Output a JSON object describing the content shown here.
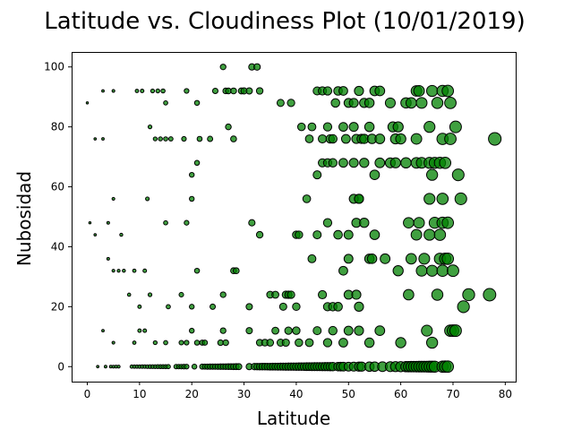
{
  "chart_data": {
    "type": "scatter",
    "title": "Latitude vs. Cloudiness Plot (10/01/2019)",
    "xlabel": "Latitude",
    "ylabel": "Nubosidad",
    "xlim": [
      -3,
      82
    ],
    "ylim": [
      -5,
      105
    ],
    "x_ticks": [
      0,
      10,
      20,
      30,
      40,
      50,
      60,
      70,
      80
    ],
    "y_ticks": [
      0,
      20,
      40,
      60,
      80,
      100
    ],
    "grid": false,
    "marker_size_encodes": "latitude",
    "colors": {
      "marker_fill": "#008000",
      "marker_edge": "#000000"
    },
    "points": [
      [
        26,
        100
      ],
      [
        31.5,
        100
      ],
      [
        32.5,
        100
      ],
      [
        0,
        88
      ],
      [
        3,
        92
      ],
      [
        5,
        92
      ],
      [
        9.5,
        92
      ],
      [
        10.5,
        92
      ],
      [
        12.5,
        92
      ],
      [
        13.5,
        92
      ],
      [
        14.5,
        92
      ],
      [
        15,
        88
      ],
      [
        19,
        92
      ],
      [
        21,
        88
      ],
      [
        24.5,
        92
      ],
      [
        26.5,
        92
      ],
      [
        27,
        92
      ],
      [
        28,
        92
      ],
      [
        29.5,
        92
      ],
      [
        30,
        92
      ],
      [
        31,
        92
      ],
      [
        33,
        92
      ],
      [
        37,
        88
      ],
      [
        39,
        88
      ],
      [
        44,
        92
      ],
      [
        45,
        92
      ],
      [
        46,
        92
      ],
      [
        47.5,
        88
      ],
      [
        48,
        92
      ],
      [
        49,
        92
      ],
      [
        50,
        88
      ],
      [
        51,
        88
      ],
      [
        52,
        92
      ],
      [
        53,
        88
      ],
      [
        54,
        88
      ],
      [
        55,
        92
      ],
      [
        56,
        92
      ],
      [
        58,
        88
      ],
      [
        61,
        88
      ],
      [
        62,
        88
      ],
      [
        63,
        92
      ],
      [
        63.5,
        92
      ],
      [
        64,
        88
      ],
      [
        66,
        92
      ],
      [
        67,
        88
      ],
      [
        68,
        92
      ],
      [
        69,
        92
      ],
      [
        69.5,
        88
      ],
      [
        1.5,
        76
      ],
      [
        3,
        76
      ],
      [
        12,
        80
      ],
      [
        13,
        76
      ],
      [
        14,
        76
      ],
      [
        15,
        76
      ],
      [
        16,
        76
      ],
      [
        18.5,
        76
      ],
      [
        21.5,
        76
      ],
      [
        23.5,
        76
      ],
      [
        27,
        80
      ],
      [
        28,
        76
      ],
      [
        41,
        80
      ],
      [
        42.5,
        76
      ],
      [
        43,
        80
      ],
      [
        45,
        76
      ],
      [
        46,
        80
      ],
      [
        46.5,
        76
      ],
      [
        47,
        76
      ],
      [
        49,
        80
      ],
      [
        49.5,
        76
      ],
      [
        51,
        80
      ],
      [
        51.5,
        76
      ],
      [
        52.5,
        76
      ],
      [
        53,
        76
      ],
      [
        54,
        80
      ],
      [
        54.5,
        76
      ],
      [
        56,
        76
      ],
      [
        58.5,
        80
      ],
      [
        59,
        76
      ],
      [
        59.5,
        80
      ],
      [
        60,
        76
      ],
      [
        63,
        76
      ],
      [
        65.5,
        80
      ],
      [
        68,
        76
      ],
      [
        69.5,
        76
      ],
      [
        70.5,
        80
      ],
      [
        78,
        76
      ],
      [
        20,
        64
      ],
      [
        21,
        68
      ],
      [
        44,
        64
      ],
      [
        45,
        68
      ],
      [
        46,
        68
      ],
      [
        47,
        68
      ],
      [
        49,
        68
      ],
      [
        51,
        68
      ],
      [
        52,
        56
      ],
      [
        53,
        68
      ],
      [
        55,
        64
      ],
      [
        56,
        68
      ],
      [
        58,
        68
      ],
      [
        59,
        68
      ],
      [
        61,
        68
      ],
      [
        63,
        68
      ],
      [
        64,
        68
      ],
      [
        65.5,
        68
      ],
      [
        66,
        64
      ],
      [
        66.5,
        68
      ],
      [
        67.5,
        68
      ],
      [
        68.5,
        68
      ],
      [
        71,
        64
      ],
      [
        5,
        56
      ],
      [
        11.5,
        56
      ],
      [
        20,
        56
      ],
      [
        42,
        56
      ],
      [
        51,
        56
      ],
      [
        52,
        56
      ],
      [
        65.5,
        56
      ],
      [
        68,
        56
      ],
      [
        71.5,
        56
      ],
      [
        0.5,
        48
      ],
      [
        1.5,
        44
      ],
      [
        4,
        48
      ],
      [
        6.5,
        44
      ],
      [
        15,
        48
      ],
      [
        19,
        48
      ],
      [
        31.5,
        48
      ],
      [
        33,
        44
      ],
      [
        40,
        44
      ],
      [
        40.5,
        44
      ],
      [
        44,
        44
      ],
      [
        46,
        48
      ],
      [
        48,
        44
      ],
      [
        50,
        44
      ],
      [
        51.5,
        48
      ],
      [
        53,
        48
      ],
      [
        55,
        44
      ],
      [
        61.5,
        48
      ],
      [
        63,
        44
      ],
      [
        63.5,
        48
      ],
      [
        65.5,
        44
      ],
      [
        66.5,
        48
      ],
      [
        67.5,
        44
      ],
      [
        68,
        48
      ],
      [
        69,
        48
      ],
      [
        4,
        36
      ],
      [
        5,
        32
      ],
      [
        6,
        32
      ],
      [
        7,
        32
      ],
      [
        9,
        32
      ],
      [
        11,
        32
      ],
      [
        21,
        32
      ],
      [
        28,
        32
      ],
      [
        28.5,
        32
      ],
      [
        43,
        36
      ],
      [
        49,
        32
      ],
      [
        50,
        36
      ],
      [
        54,
        36
      ],
      [
        54.5,
        36
      ],
      [
        57,
        36
      ],
      [
        59.5,
        32
      ],
      [
        62,
        36
      ],
      [
        64,
        32
      ],
      [
        64.5,
        36
      ],
      [
        66,
        32
      ],
      [
        67.5,
        36
      ],
      [
        68,
        32
      ],
      [
        68.5,
        36
      ],
      [
        69,
        36
      ],
      [
        70,
        32
      ],
      [
        8,
        24
      ],
      [
        10,
        20
      ],
      [
        12,
        24
      ],
      [
        15.5,
        20
      ],
      [
        18,
        24
      ],
      [
        20,
        20
      ],
      [
        24,
        20
      ],
      [
        26,
        24
      ],
      [
        31,
        20
      ],
      [
        35,
        24
      ],
      [
        36,
        24
      ],
      [
        37.5,
        20
      ],
      [
        38,
        24
      ],
      [
        38.5,
        24
      ],
      [
        39,
        24
      ],
      [
        40,
        20
      ],
      [
        45,
        24
      ],
      [
        46,
        20
      ],
      [
        47,
        20
      ],
      [
        48,
        20
      ],
      [
        50,
        24
      ],
      [
        51.5,
        24
      ],
      [
        52,
        20
      ],
      [
        61.5,
        24
      ],
      [
        67,
        24
      ],
      [
        72,
        20
      ],
      [
        73,
        24
      ],
      [
        77,
        24
      ],
      [
        3,
        12
      ],
      [
        5,
        8
      ],
      [
        9,
        8
      ],
      [
        10,
        12
      ],
      [
        11,
        12
      ],
      [
        13,
        8
      ],
      [
        15,
        8
      ],
      [
        18,
        8
      ],
      [
        19,
        8
      ],
      [
        20,
        12
      ],
      [
        21,
        8
      ],
      [
        22,
        8
      ],
      [
        22.5,
        8
      ],
      [
        25.5,
        8
      ],
      [
        26,
        12
      ],
      [
        26.5,
        8
      ],
      [
        31,
        12
      ],
      [
        33,
        8
      ],
      [
        34,
        8
      ],
      [
        35,
        8
      ],
      [
        36,
        12
      ],
      [
        37,
        8
      ],
      [
        38,
        8
      ],
      [
        38.5,
        12
      ],
      [
        40,
        12
      ],
      [
        40.5,
        8
      ],
      [
        42.5,
        8
      ],
      [
        44,
        12
      ],
      [
        46,
        8
      ],
      [
        47,
        12
      ],
      [
        49,
        8
      ],
      [
        50,
        12
      ],
      [
        52,
        12
      ],
      [
        54,
        8
      ],
      [
        56,
        12
      ],
      [
        60,
        8
      ],
      [
        65,
        12
      ],
      [
        66,
        8
      ],
      [
        69.5,
        12
      ],
      [
        70,
        12
      ],
      [
        70.5,
        12
      ],
      [
        2,
        0
      ],
      [
        3.5,
        0
      ],
      [
        4.5,
        0
      ],
      [
        5,
        0
      ],
      [
        5.5,
        0
      ],
      [
        6,
        0
      ],
      [
        8.5,
        0
      ],
      [
        9,
        0
      ],
      [
        9.5,
        0
      ],
      [
        10,
        0
      ],
      [
        10.5,
        0
      ],
      [
        11,
        0
      ],
      [
        11.5,
        0
      ],
      [
        12,
        0
      ],
      [
        12.5,
        0
      ],
      [
        13,
        0
      ],
      [
        13.5,
        0
      ],
      [
        14,
        0
      ],
      [
        14.5,
        0
      ],
      [
        15,
        0
      ],
      [
        15.5,
        0
      ],
      [
        17,
        0
      ],
      [
        17.5,
        0
      ],
      [
        18,
        0
      ],
      [
        18.5,
        0
      ],
      [
        19,
        0
      ],
      [
        20.5,
        0
      ],
      [
        22,
        0
      ],
      [
        22.5,
        0
      ],
      [
        23,
        0
      ],
      [
        23.5,
        0
      ],
      [
        24,
        0
      ],
      [
        24.5,
        0
      ],
      [
        25,
        0
      ],
      [
        25.5,
        0
      ],
      [
        26,
        0
      ],
      [
        26.5,
        0
      ],
      [
        27,
        0
      ],
      [
        27.5,
        0
      ],
      [
        28,
        0
      ],
      [
        28.5,
        0
      ],
      [
        29,
        0
      ],
      [
        31,
        0
      ],
      [
        32,
        0
      ],
      [
        32.5,
        0
      ],
      [
        33,
        0
      ],
      [
        33.5,
        0
      ],
      [
        34,
        0
      ],
      [
        34.5,
        0
      ],
      [
        35,
        0
      ],
      [
        35.5,
        0
      ],
      [
        36,
        0
      ],
      [
        36.5,
        0
      ],
      [
        37,
        0
      ],
      [
        37.5,
        0
      ],
      [
        38,
        0
      ],
      [
        38.5,
        0
      ],
      [
        39,
        0
      ],
      [
        39.5,
        0
      ],
      [
        40,
        0
      ],
      [
        40.5,
        0
      ],
      [
        41,
        0
      ],
      [
        41.5,
        0
      ],
      [
        42,
        0
      ],
      [
        42.5,
        0
      ],
      [
        43,
        0
      ],
      [
        43.5,
        0
      ],
      [
        44,
        0
      ],
      [
        44.5,
        0
      ],
      [
        45,
        0
      ],
      [
        45.5,
        0
      ],
      [
        46,
        0
      ],
      [
        46.5,
        0
      ],
      [
        47,
        0
      ],
      [
        48,
        0
      ],
      [
        48.5,
        0
      ],
      [
        49,
        0
      ],
      [
        50,
        0
      ],
      [
        51,
        0
      ],
      [
        52,
        0
      ],
      [
        52.5,
        0
      ],
      [
        54,
        0
      ],
      [
        55,
        0
      ],
      [
        56.5,
        0
      ],
      [
        58,
        0
      ],
      [
        59,
        0
      ],
      [
        60,
        0
      ],
      [
        61,
        0
      ],
      [
        61.5,
        0
      ],
      [
        62,
        0
      ],
      [
        62.5,
        0
      ],
      [
        63,
        0
      ],
      [
        63.5,
        0
      ],
      [
        64,
        0
      ],
      [
        64.5,
        0
      ],
      [
        65,
        0
      ],
      [
        65.5,
        0
      ],
      [
        66,
        0
      ],
      [
        66.5,
        0
      ],
      [
        68,
        0
      ],
      [
        68.5,
        0
      ],
      [
        69,
        0
      ]
    ]
  }
}
